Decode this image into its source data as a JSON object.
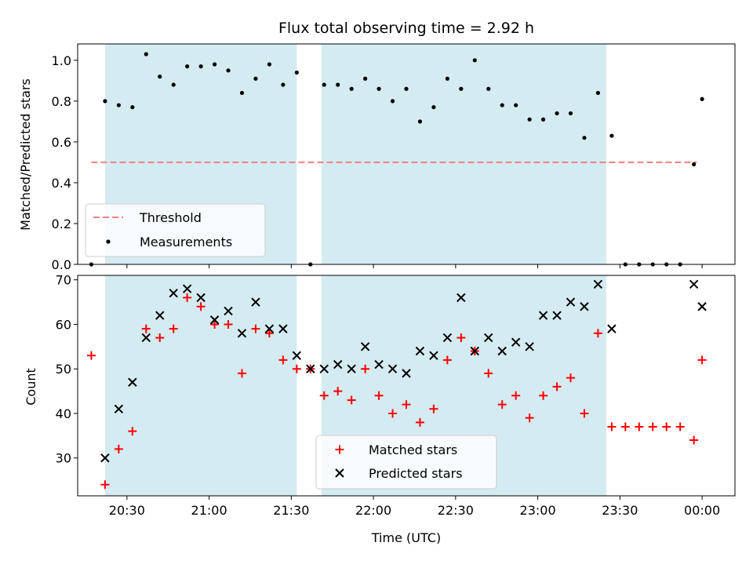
{
  "figure": {
    "title": "Flux total observing time = 2.92 h",
    "xlabel": "Time (UTC)"
  },
  "chart_data": [
    {
      "type": "scatter",
      "ylabel": "Matched/Predicted stars",
      "xlim": [
        "20:12",
        "00:12"
      ],
      "ylim": [
        0,
        1.08
      ],
      "yticks": [
        0.0,
        0.2,
        0.4,
        0.6,
        0.8,
        1.0
      ],
      "yticklabels": [
        "0.0",
        "0.2",
        "0.4",
        "0.6",
        "0.8",
        "1.0"
      ],
      "shaded_intervals": [
        [
          "20:22",
          "21:32"
        ],
        [
          "21:41",
          "23:25"
        ]
      ],
      "shade_color": "#add8e6",
      "threshold": {
        "name": "Threshold",
        "value": 0.5,
        "x_range": [
          "20:17",
          "23:58"
        ],
        "color": "#f08080"
      },
      "legend": {
        "placement": "lower-left",
        "entries": [
          "Threshold",
          "Measurements"
        ]
      },
      "series": [
        {
          "name": "Measurements",
          "marker": "dot",
          "color": "#000000",
          "x": [
            "20:17",
            "20:22",
            "20:27",
            "20:32",
            "20:37",
            "20:42",
            "20:47",
            "20:52",
            "20:57",
            "21:02",
            "21:07",
            "21:12",
            "21:17",
            "21:22",
            "21:27",
            "21:32",
            "21:37",
            "21:42",
            "21:47",
            "21:52",
            "21:57",
            "22:02",
            "22:07",
            "22:12",
            "22:17",
            "22:22",
            "22:27",
            "22:32",
            "22:37",
            "22:42",
            "22:47",
            "22:52",
            "22:57",
            "23:02",
            "23:07",
            "23:12",
            "23:17",
            "23:22",
            "23:27",
            "23:32",
            "23:37",
            "23:42",
            "23:47",
            "23:52",
            "23:57",
            "00:00"
          ],
          "y": [
            0.0,
            0.8,
            0.78,
            0.77,
            1.03,
            0.92,
            0.88,
            0.97,
            0.97,
            0.98,
            0.95,
            0.84,
            0.91,
            0.98,
            0.88,
            0.94,
            0.0,
            0.88,
            0.88,
            0.86,
            0.91,
            0.86,
            0.8,
            0.86,
            0.7,
            0.77,
            0.91,
            0.86,
            1.0,
            0.86,
            0.78,
            0.78,
            0.71,
            0.71,
            0.74,
            0.74,
            0.62,
            0.84,
            0.63,
            0.0,
            0.0,
            0.0,
            0.0,
            0.0,
            0.49,
            0.81
          ]
        }
      ]
    },
    {
      "type": "scatter",
      "ylabel": "Count",
      "xlim": [
        "20:12",
        "00:12"
      ],
      "ylim": [
        21.5,
        71
      ],
      "yticks": [
        30,
        40,
        50,
        60,
        70
      ],
      "yticklabels": [
        "30",
        "40",
        "50",
        "60",
        "70"
      ],
      "xticks": [
        "20:30",
        "21:00",
        "21:30",
        "22:00",
        "22:30",
        "23:00",
        "23:30",
        "00:00"
      ],
      "xticklabels": [
        "20:30",
        "21:00",
        "21:30",
        "22:00",
        "22:30",
        "23:00",
        "23:30",
        "00:00"
      ],
      "shaded_intervals": [
        [
          "20:22",
          "21:32"
        ],
        [
          "21:41",
          "23:25"
        ]
      ],
      "shade_color": "#add8e6",
      "legend": {
        "placement": "lower-center",
        "entries": [
          "Matched stars",
          "Predicted stars"
        ]
      },
      "series": [
        {
          "name": "Matched stars",
          "marker": "plus",
          "color": "#ff0000",
          "x": [
            "20:17",
            "20:22",
            "20:27",
            "20:32",
            "20:37",
            "20:42",
            "20:47",
            "20:52",
            "20:57",
            "21:02",
            "21:07",
            "21:12",
            "21:17",
            "21:22",
            "21:27",
            "21:32",
            "21:37",
            "21:42",
            "21:47",
            "21:52",
            "21:57",
            "22:02",
            "22:07",
            "22:12",
            "22:17",
            "22:22",
            "22:27",
            "22:32",
            "22:37",
            "22:42",
            "22:47",
            "22:52",
            "22:57",
            "23:02",
            "23:07",
            "23:12",
            "23:17",
            "23:22",
            "23:27",
            "23:32",
            "23:37",
            "23:42",
            "23:47",
            "23:52",
            "23:57",
            "00:00"
          ],
          "y": [
            53,
            24,
            32,
            36,
            59,
            57,
            59,
            66,
            64,
            60,
            60,
            49,
            59,
            58,
            52,
            50,
            50,
            44,
            45,
            43,
            50,
            44,
            40,
            42,
            38,
            41,
            52,
            57,
            54,
            49,
            42,
            44,
            39,
            44,
            46,
            48,
            40,
            58,
            37,
            37,
            37,
            37,
            37,
            37,
            34,
            52
          ]
        },
        {
          "name": "Predicted stars",
          "marker": "x",
          "color": "#000000",
          "x": [
            "20:22",
            "20:27",
            "20:32",
            "20:37",
            "20:42",
            "20:47",
            "20:52",
            "20:57",
            "21:02",
            "21:07",
            "21:12",
            "21:17",
            "21:22",
            "21:27",
            "21:32",
            "21:37",
            "21:42",
            "21:47",
            "21:52",
            "21:57",
            "22:02",
            "22:07",
            "22:12",
            "22:17",
            "22:22",
            "22:27",
            "22:32",
            "22:37",
            "22:42",
            "22:47",
            "22:52",
            "22:57",
            "23:02",
            "23:07",
            "23:12",
            "23:17",
            "23:22",
            "23:27",
            "23:57",
            "00:00"
          ],
          "y": [
            30,
            41,
            47,
            57,
            62,
            67,
            68,
            66,
            61,
            63,
            58,
            65,
            59,
            59,
            53,
            50,
            50,
            51,
            50,
            55,
            51,
            50,
            49,
            54,
            53,
            57,
            66,
            54,
            57,
            54,
            56,
            55,
            62,
            62,
            65,
            64,
            69,
            59,
            69,
            64
          ]
        }
      ]
    }
  ]
}
